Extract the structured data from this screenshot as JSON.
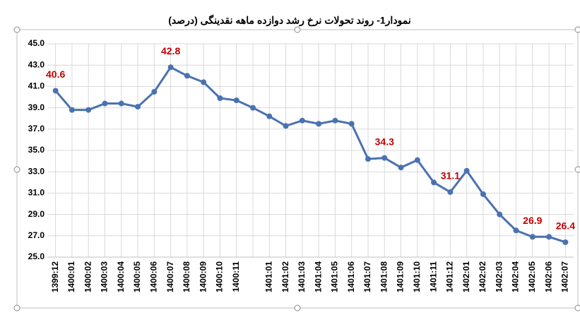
{
  "chart_data": {
    "type": "line",
    "title": "نمودار1- روند تحولات نرخ رشد دوازده ماهه نقدینگی (درصد)",
    "categories": [
      "1399:12",
      "1400:01",
      "1400:02",
      "1400:03",
      "1400:04",
      "1400:05",
      "1400:06",
      "1400:07",
      "1400:08",
      "1400:09",
      "1400:10",
      "1400:11",
      null,
      "1401:01",
      "1401:02",
      "1401:03",
      "1401:04",
      "1401:05",
      "1401:06",
      "1401:07",
      "1401:08",
      "1401:09",
      "1401:10",
      "1401:11",
      "1401:12",
      "1402:01",
      "1402:02",
      "1402:03",
      "1402:04",
      "1402:05",
      "1402:06",
      "1402:07"
    ],
    "values": [
      40.6,
      38.8,
      38.8,
      39.4,
      39.4,
      39.1,
      40.5,
      42.8,
      42.0,
      41.4,
      39.9,
      39.7,
      39.0,
      38.2,
      37.3,
      37.8,
      37.5,
      37.8,
      37.5,
      34.2,
      34.3,
      33.4,
      34.1,
      32.0,
      31.1,
      33.1,
      30.9,
      29.0,
      27.5,
      26.9,
      26.9,
      26.4
    ],
    "value_labels": [
      "40.6",
      null,
      null,
      null,
      null,
      null,
      null,
      "42.8",
      null,
      null,
      null,
      null,
      null,
      null,
      null,
      null,
      null,
      null,
      null,
      null,
      "34.3",
      null,
      null,
      null,
      "31.1",
      null,
      null,
      null,
      null,
      "26.9",
      null,
      "26.4"
    ],
    "color": "#4a72b0",
    "label_color": "#c00000",
    "ylim": [
      25,
      45
    ],
    "yticks": [
      {
        "value": 25,
        "label": "25.0"
      },
      {
        "value": 27,
        "label": "27.0"
      },
      {
        "value": 29,
        "label": "29.0"
      },
      {
        "value": 31,
        "label": "31.0"
      },
      {
        "value": 33,
        "label": "33.0"
      },
      {
        "value": 35,
        "label": "35.0"
      },
      {
        "value": 37,
        "label": "37.0"
      },
      {
        "value": 39,
        "label": "39.0"
      },
      {
        "value": 41,
        "label": "41.0"
      },
      {
        "value": 43,
        "label": "43.0"
      },
      {
        "value": 45,
        "label": "45.0"
      }
    ],
    "grid": true
  }
}
